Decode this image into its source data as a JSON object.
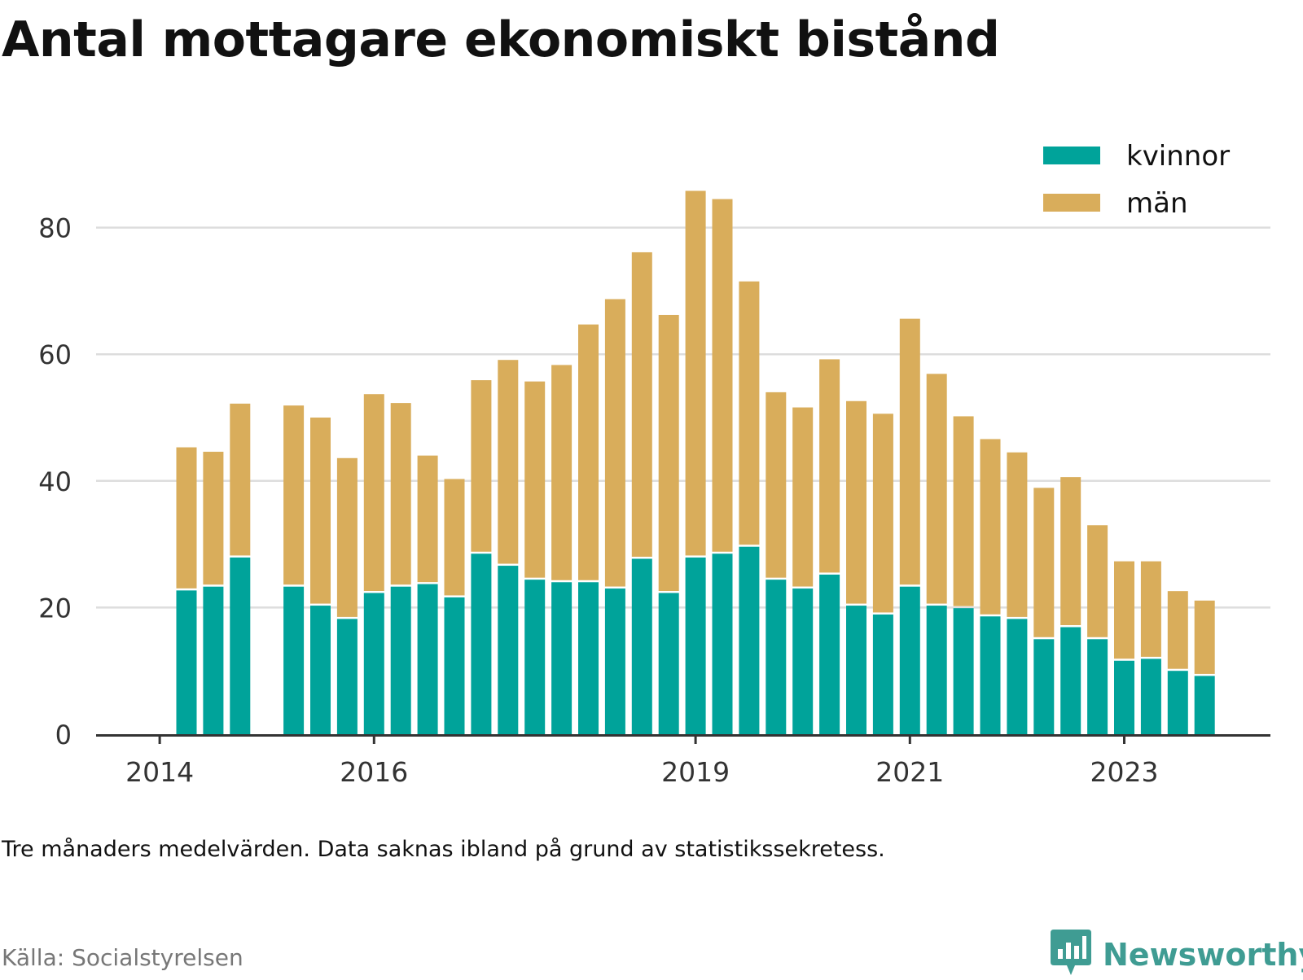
{
  "title": "Antal mottagare ekonomiskt bistånd",
  "note": "Tre månaders medelvärden. Data saknas ibland på grund av statistikssekretess.",
  "source": "Källa: Socialstyrelsen",
  "brand": {
    "name": "Newsworthy",
    "icon": "newsworthy-logo-icon"
  },
  "colors": {
    "kvinnor": "#00a39a",
    "man": "#d9ad5b",
    "grid": "#dddddd",
    "axis": "#333333"
  },
  "chart_data": {
    "type": "bar",
    "stacked": true,
    "x_ticks": [
      {
        "label": "2014",
        "index": -1
      },
      {
        "label": "2016",
        "index": 7
      },
      {
        "label": "2019",
        "index": 19
      },
      {
        "label": "2021",
        "index": 27
      },
      {
        "label": "2023",
        "index": 35
      }
    ],
    "y_ticks": [
      0,
      20,
      40,
      60,
      80
    ],
    "ylim": [
      0,
      90
    ],
    "grid": true,
    "legend_position": "top-right",
    "series": [
      {
        "name": "kvinnor",
        "values": [
          22.7,
          23.3,
          27.9,
          null,
          23.3,
          20.3,
          18.2,
          22.3,
          23.3,
          23.7,
          21.6,
          28.5,
          26.6,
          24.4,
          24.0,
          24.0,
          23.0,
          27.7,
          22.3,
          27.9,
          28.5,
          29.6,
          24.4,
          23.0,
          25.2,
          20.3,
          18.9,
          23.3,
          20.3,
          19.9,
          18.6,
          18.2,
          15.0,
          16.9,
          15.0,
          11.6,
          11.9,
          10.0,
          9.2
        ]
      },
      {
        "name": "män",
        "values": [
          22.6,
          21.3,
          24.3,
          null,
          28.6,
          29.7,
          25.4,
          31.4,
          29.0,
          20.3,
          18.7,
          27.4,
          32.5,
          31.3,
          34.3,
          40.7,
          45.7,
          48.4,
          43.9,
          57.9,
          56.0,
          41.9,
          29.6,
          28.6,
          34.0,
          32.3,
          31.7,
          42.3,
          36.6,
          30.3,
          28.0,
          26.3,
          23.9,
          23.7,
          18.0,
          15.7,
          15.4,
          12.6,
          11.9
        ]
      }
    ]
  }
}
